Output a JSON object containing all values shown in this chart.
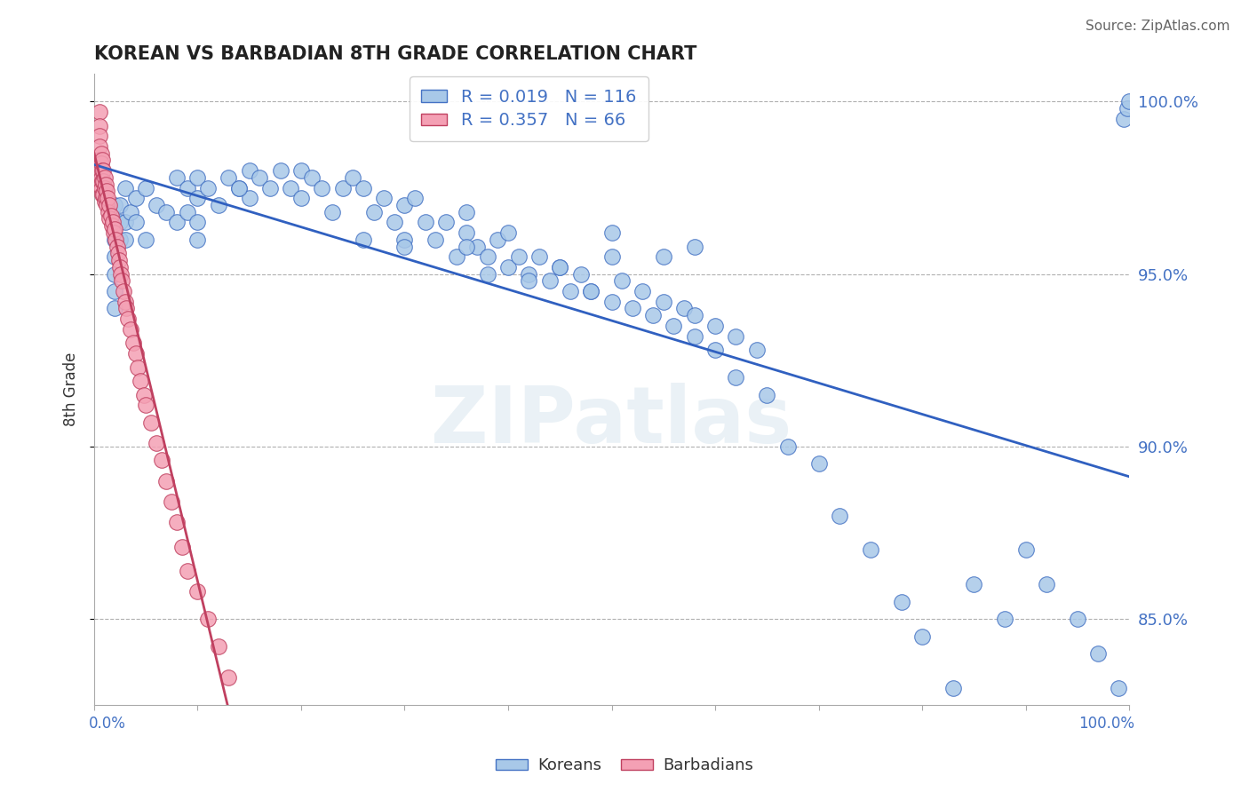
{
  "title": "KOREAN VS BARBADIAN 8TH GRADE CORRELATION CHART",
  "source": "Source: ZipAtlas.com",
  "ylabel": "8th Grade",
  "xlim": [
    0.0,
    1.0
  ],
  "ylim": [
    0.825,
    1.008
  ],
  "yticks": [
    0.85,
    0.9,
    0.95,
    1.0
  ],
  "ytick_labels": [
    "85.0%",
    "90.0%",
    "95.0%",
    "100.0%"
  ],
  "legend_korean": "R = 0.019   N = 116",
  "legend_barbadian": "R = 0.357   N = 66",
  "korean_color": "#a8c8e8",
  "barbadian_color": "#f4a0b4",
  "korean_edge_color": "#4472c4",
  "barbadian_edge_color": "#c04060",
  "korean_line_color": "#3060c0",
  "barbadian_line_color": "#c04060",
  "legend_text_color": "#4472c4",
  "watermark": "ZIPatlas",
  "korean_x": [
    0.02,
    0.02,
    0.02,
    0.02,
    0.02,
    0.02,
    0.02,
    0.025,
    0.025,
    0.025,
    0.03,
    0.03,
    0.03,
    0.035,
    0.04,
    0.04,
    0.05,
    0.05,
    0.06,
    0.07,
    0.08,
    0.08,
    0.09,
    0.09,
    0.1,
    0.1,
    0.1,
    0.1,
    0.11,
    0.12,
    0.13,
    0.14,
    0.15,
    0.15,
    0.16,
    0.17,
    0.18,
    0.19,
    0.2,
    0.2,
    0.21,
    0.22,
    0.23,
    0.24,
    0.25,
    0.26,
    0.27,
    0.28,
    0.29,
    0.3,
    0.3,
    0.31,
    0.32,
    0.33,
    0.34,
    0.35,
    0.36,
    0.36,
    0.37,
    0.38,
    0.39,
    0.4,
    0.41,
    0.42,
    0.43,
    0.44,
    0.45,
    0.46,
    0.47,
    0.48,
    0.5,
    0.51,
    0.52,
    0.53,
    0.54,
    0.55,
    0.56,
    0.57,
    0.58,
    0.6,
    0.62,
    0.65,
    0.67,
    0.7,
    0.72,
    0.75,
    0.78,
    0.8,
    0.83,
    0.85,
    0.88,
    0.9,
    0.92,
    0.95,
    0.97,
    0.99,
    0.995,
    0.998,
    1.0,
    0.3,
    0.4,
    0.5,
    0.36,
    0.26,
    0.5,
    0.55,
    0.58,
    0.38,
    0.42,
    0.45,
    0.48,
    0.58,
    0.6,
    0.62,
    0.64,
    0.14
  ],
  "korean_y": [
    0.97,
    0.965,
    0.96,
    0.955,
    0.95,
    0.945,
    0.94,
    0.97,
    0.965,
    0.96,
    0.975,
    0.965,
    0.96,
    0.968,
    0.972,
    0.965,
    0.975,
    0.96,
    0.97,
    0.968,
    0.978,
    0.965,
    0.975,
    0.968,
    0.978,
    0.972,
    0.965,
    0.96,
    0.975,
    0.97,
    0.978,
    0.975,
    0.98,
    0.972,
    0.978,
    0.975,
    0.98,
    0.975,
    0.98,
    0.972,
    0.978,
    0.975,
    0.968,
    0.975,
    0.978,
    0.975,
    0.968,
    0.972,
    0.965,
    0.97,
    0.96,
    0.972,
    0.965,
    0.96,
    0.965,
    0.955,
    0.968,
    0.962,
    0.958,
    0.955,
    0.96,
    0.952,
    0.955,
    0.95,
    0.955,
    0.948,
    0.952,
    0.945,
    0.95,
    0.945,
    0.942,
    0.948,
    0.94,
    0.945,
    0.938,
    0.942,
    0.935,
    0.94,
    0.932,
    0.928,
    0.92,
    0.915,
    0.9,
    0.895,
    0.88,
    0.87,
    0.855,
    0.845,
    0.83,
    0.86,
    0.85,
    0.87,
    0.86,
    0.85,
    0.84,
    0.83,
    0.995,
    0.998,
    1.0,
    0.958,
    0.962,
    0.955,
    0.958,
    0.96,
    0.962,
    0.955,
    0.958,
    0.95,
    0.948,
    0.952,
    0.945,
    0.938,
    0.935,
    0.932,
    0.928,
    0.975
  ],
  "barbadian_x": [
    0.005,
    0.005,
    0.005,
    0.005,
    0.005,
    0.005,
    0.005,
    0.007,
    0.007,
    0.007,
    0.007,
    0.008,
    0.008,
    0.008,
    0.008,
    0.009,
    0.009,
    0.009,
    0.01,
    0.01,
    0.01,
    0.011,
    0.011,
    0.012,
    0.012,
    0.013,
    0.014,
    0.015,
    0.015,
    0.016,
    0.017,
    0.018,
    0.019,
    0.02,
    0.021,
    0.022,
    0.023,
    0.024,
    0.025,
    0.026,
    0.027,
    0.028,
    0.03,
    0.031,
    0.033,
    0.035,
    0.038,
    0.04,
    0.042,
    0.045,
    0.048,
    0.05,
    0.055,
    0.06,
    0.065,
    0.07,
    0.075,
    0.08,
    0.085,
    0.09,
    0.1,
    0.11,
    0.12,
    0.13,
    0.145,
    0.16
  ],
  "barbadian_y": [
    0.997,
    0.993,
    0.99,
    0.987,
    0.983,
    0.98,
    0.976,
    0.985,
    0.982,
    0.978,
    0.975,
    0.983,
    0.98,
    0.977,
    0.973,
    0.98,
    0.977,
    0.973,
    0.978,
    0.975,
    0.971,
    0.976,
    0.972,
    0.974,
    0.97,
    0.972,
    0.968,
    0.97,
    0.966,
    0.967,
    0.964,
    0.965,
    0.962,
    0.963,
    0.96,
    0.958,
    0.956,
    0.954,
    0.952,
    0.95,
    0.948,
    0.945,
    0.942,
    0.94,
    0.937,
    0.934,
    0.93,
    0.927,
    0.923,
    0.919,
    0.915,
    0.912,
    0.907,
    0.901,
    0.896,
    0.89,
    0.884,
    0.878,
    0.871,
    0.864,
    0.858,
    0.85,
    0.842,
    0.833,
    0.822,
    0.81
  ]
}
